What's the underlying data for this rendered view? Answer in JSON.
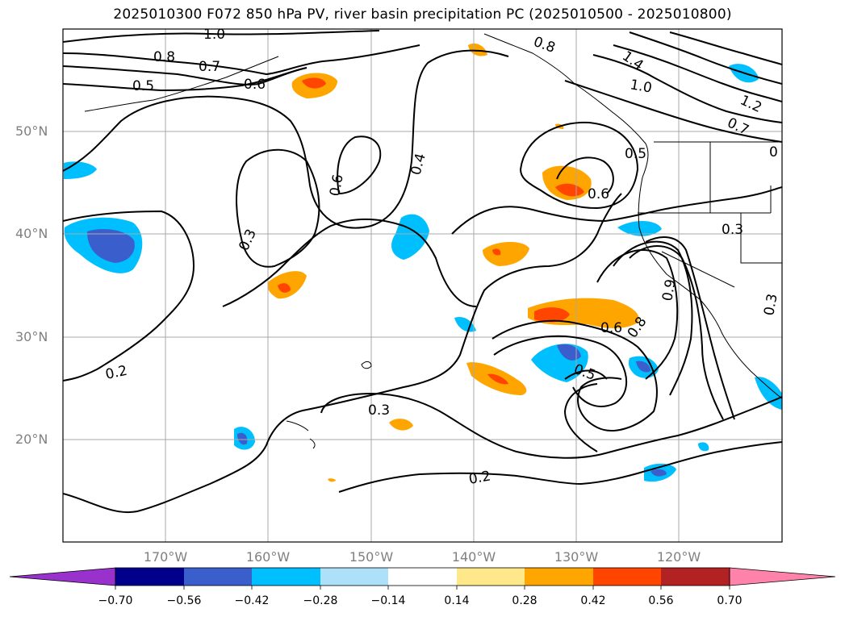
{
  "title": "2025010300 F072 850 hPa PV, river basin precipitation PC (2025010500 - 2025010800)",
  "map": {
    "lat_labels": [
      "50°N",
      "40°N",
      "30°N",
      "20°N"
    ],
    "lon_labels": [
      "170°W",
      "160°W",
      "150°W",
      "140°W",
      "130°W",
      "120°W"
    ],
    "contour_labels": [
      "1.0",
      "0.8",
      "0.7",
      "0.5",
      "0.6",
      "0.8",
      "1.4",
      "1.0",
      "1.2",
      "0.7",
      "0",
      "0.6",
      "0.4",
      "0.6",
      "0.5",
      "0.3",
      "0.3",
      "0.6",
      "0.8",
      "0.9",
      "0.5",
      "0.3",
      "0.2",
      "0.3",
      "0.2"
    ],
    "colors": {
      "positive_low": "#FFE88A",
      "positive_mid": "#FFA500",
      "positive_high": "#FF4500",
      "negative_low": "#00BFFF",
      "negative_high": "#3A5FCD",
      "contour": "#000000",
      "grid": "#A9A9A9"
    }
  },
  "colorbar": {
    "tick_labels": [
      "−0.70",
      "−0.56",
      "−0.42",
      "−0.28",
      "−0.14",
      "0.14",
      "0.28",
      "0.42",
      "0.56",
      "0.70"
    ],
    "colors": [
      "#9932CC",
      "#00008B",
      "#3A5FCD",
      "#00BFFF",
      "#ADE1FA",
      "#FFFFFF",
      "#FFE88A",
      "#FFA500",
      "#FF4500",
      "#B22222",
      "#FF82AB"
    ]
  }
}
